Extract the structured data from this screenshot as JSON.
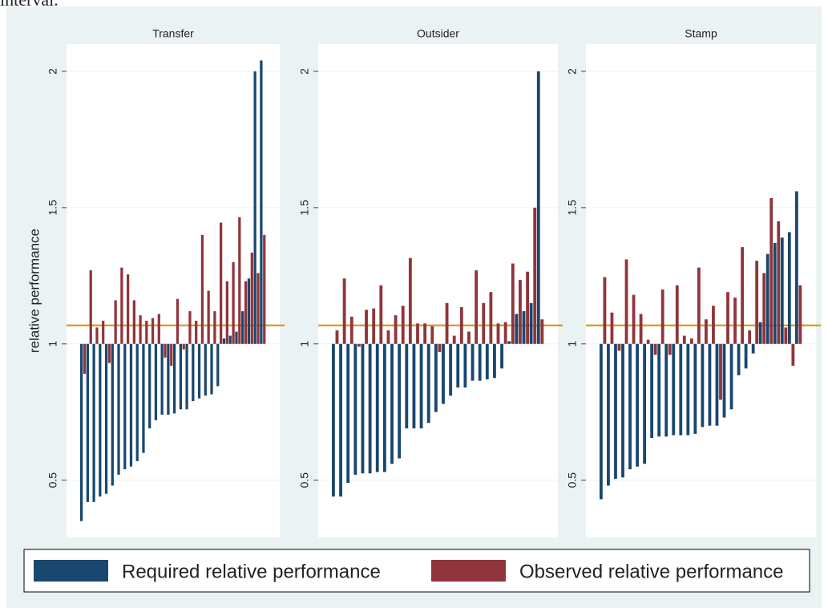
{
  "header_fragment": "interval.",
  "chart_data": [
    {
      "type": "bar",
      "title": "Transfer",
      "ylabel": "relative performance",
      "ylim": [
        0.29,
        2.1
      ],
      "yticks": [
        0.5,
        1,
        1.5,
        2
      ],
      "grid": true,
      "bar_base": 1,
      "reference_line": 1.068,
      "reference_color": "#d4900a",
      "series": [
        {
          "name": "Required relative performance",
          "color": "#1a476f",
          "values": [
            0.35,
            0.42,
            0.42,
            0.44,
            0.45,
            0.48,
            0.52,
            0.54,
            0.55,
            0.57,
            0.6,
            0.69,
            0.72,
            0.74,
            0.74,
            0.745,
            0.76,
            0.76,
            0.79,
            0.8,
            0.81,
            0.815,
            0.845,
            1.02,
            1.03,
            1.045,
            1.12,
            1.24,
            2.0,
            2.04
          ]
        },
        {
          "name": "Observed relative performance",
          "color": "#90353b",
          "values": [
            0.89,
            1.27,
            1.06,
            1.085,
            0.93,
            1.16,
            1.28,
            1.255,
            1.16,
            1.105,
            1.085,
            1.095,
            1.11,
            0.95,
            0.92,
            1.165,
            0.98,
            1.12,
            1.085,
            1.4,
            1.195,
            1.12,
            1.445,
            1.23,
            1.3,
            1.465,
            1.23,
            1.335,
            1.26,
            1.4
          ]
        }
      ]
    },
    {
      "type": "bar",
      "title": "Outsider",
      "ylim": [
        0.29,
        2.1
      ],
      "yticks": [
        0.5,
        1,
        1.5,
        2
      ],
      "grid": true,
      "bar_base": 1,
      "reference_line": 1.068,
      "reference_color": "#d4900a",
      "series": [
        {
          "name": "Required relative performance",
          "color": "#1a476f",
          "values": [
            0.44,
            0.44,
            0.49,
            0.52,
            0.525,
            0.525,
            0.53,
            0.53,
            0.56,
            0.58,
            0.69,
            0.69,
            0.69,
            0.71,
            0.75,
            0.78,
            0.81,
            0.84,
            0.84,
            0.865,
            0.865,
            0.87,
            0.875,
            0.91,
            1.01,
            1.11,
            1.12,
            1.15,
            2.0
          ]
        },
        {
          "name": "Observed relative performance",
          "color": "#90353b",
          "values": [
            1.05,
            1.24,
            1.1,
            0.99,
            1.125,
            1.13,
            1.215,
            1.05,
            1.105,
            1.14,
            1.315,
            1.075,
            1.075,
            1.065,
            0.97,
            1.15,
            1.03,
            1.135,
            1.045,
            1.27,
            1.15,
            1.19,
            1.075,
            1.08,
            1.295,
            1.235,
            1.265,
            1.5,
            1.09
          ]
        }
      ]
    },
    {
      "type": "bar",
      "title": "Stamp",
      "ylim": [
        0.29,
        2.1
      ],
      "yticks": [
        0.5,
        1,
        1.5,
        2
      ],
      "grid": true,
      "bar_base": 1,
      "reference_line": 1.068,
      "reference_color": "#d4900a",
      "series": [
        {
          "name": "Required relative performance",
          "color": "#1a476f",
          "values": [
            0.43,
            0.48,
            0.505,
            0.51,
            0.54,
            0.55,
            0.56,
            0.655,
            0.66,
            0.66,
            0.665,
            0.665,
            0.665,
            0.67,
            0.695,
            0.7,
            0.7,
            0.73,
            0.76,
            0.885,
            0.91,
            0.965,
            1.08,
            1.33,
            1.37,
            1.39,
            1.41,
            1.56
          ]
        },
        {
          "name": "Observed relative performance",
          "color": "#90353b",
          "values": [
            1.245,
            1.115,
            0.975,
            1.31,
            1.18,
            1.11,
            1.015,
            0.96,
            1.2,
            0.96,
            1.215,
            1.03,
            1.02,
            1.28,
            1.09,
            1.14,
            0.795,
            1.19,
            1.17,
            1.355,
            1.05,
            1.305,
            1.26,
            1.535,
            1.45,
            1.06,
            0.92,
            1.215
          ]
        }
      ]
    }
  ]
}
